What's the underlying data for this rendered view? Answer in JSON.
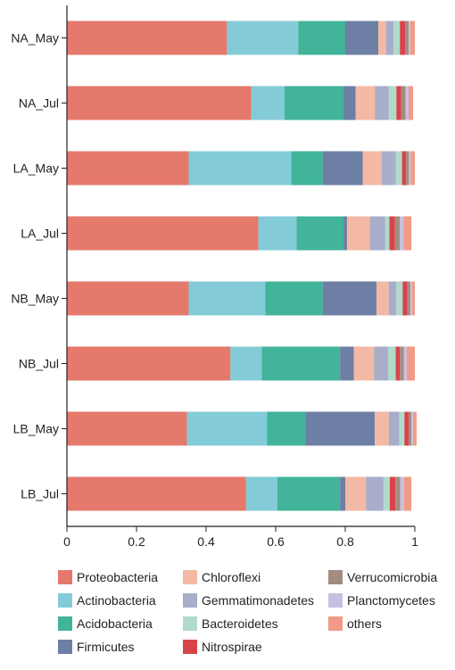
{
  "chart_data": {
    "type": "bar",
    "orientation": "horizontal",
    "stacked": true,
    "title": "",
    "xlabel": "",
    "ylabel": "",
    "xlim": [
      0,
      1
    ],
    "xticks": [
      "0",
      "0.2",
      "0.4",
      "0.6",
      "0.8",
      "1"
    ],
    "xtick_values": [
      0,
      0.2,
      0.4,
      0.6,
      0.8,
      1
    ],
    "grid": false,
    "legend_position": "bottom",
    "categories": [
      "NA_May",
      "NA_Jul",
      "LA_May",
      "LA_Jul",
      "NB_May",
      "NB_Jul",
      "LB_May",
      "LB_Jul"
    ],
    "series": [
      {
        "name": "Proteobacteria",
        "color": "#E5796B",
        "values": [
          0.46,
          0.53,
          0.35,
          0.55,
          0.35,
          0.47,
          0.345,
          0.515
        ]
      },
      {
        "name": "Actinobacteria",
        "color": "#84CBD8",
        "values": [
          0.205,
          0.095,
          0.295,
          0.11,
          0.22,
          0.09,
          0.23,
          0.09
        ]
      },
      {
        "name": "Acidobacteria",
        "color": "#41B49A",
        "values": [
          0.135,
          0.17,
          0.09,
          0.135,
          0.165,
          0.225,
          0.11,
          0.18
        ]
      },
      {
        "name": "Firmicutes",
        "color": "#6E7FA6",
        "values": [
          0.095,
          0.035,
          0.115,
          0.01,
          0.155,
          0.04,
          0.2,
          0.015
        ]
      },
      {
        "name": "Chloroflexi",
        "color": "#F3B9A5",
        "values": [
          0.022,
          0.055,
          0.055,
          0.065,
          0.035,
          0.058,
          0.04,
          0.06
        ]
      },
      {
        "name": "Gemmatimonadetes",
        "color": "#A8AEC9",
        "values": [
          0.022,
          0.04,
          0.04,
          0.045,
          0.022,
          0.04,
          0.03,
          0.05
        ]
      },
      {
        "name": "Bacteroidetes",
        "color": "#B0DACB",
        "values": [
          0.018,
          0.022,
          0.018,
          0.012,
          0.018,
          0.022,
          0.015,
          0.018
        ]
      },
      {
        "name": "Nitrospirae",
        "color": "#D8434B",
        "values": [
          0.015,
          0.014,
          0.012,
          0.016,
          0.013,
          0.012,
          0.012,
          0.016
        ]
      },
      {
        "name": "Verrucomicrobia",
        "color": "#A28C7F",
        "values": [
          0.01,
          0.012,
          0.008,
          0.014,
          0.009,
          0.011,
          0.008,
          0.014
        ]
      },
      {
        "name": "Planctomycetes",
        "color": "#C8BFE0",
        "values": [
          0.005,
          0.009,
          0.005,
          0.011,
          0.005,
          0.009,
          0.005,
          0.011
        ]
      },
      {
        "name": "others",
        "color": "#F19B86",
        "values": [
          0.013,
          0.013,
          0.012,
          0.022,
          0.008,
          0.023,
          0.01,
          0.021
        ]
      }
    ]
  }
}
